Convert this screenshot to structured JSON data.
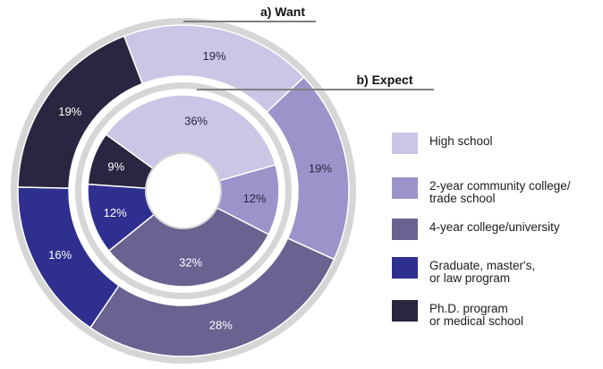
{
  "chart_data": {
    "type": "pie",
    "rings": [
      {
        "name": "a) Want",
        "slices": [
          {
            "category": "High school",
            "value": 19,
            "label": "19%"
          },
          {
            "category": "2-year community college/ trade school",
            "value": 19,
            "label": "19%"
          },
          {
            "category": "4-year college/university",
            "value": 28,
            "label": "28%"
          },
          {
            "category": "Graduate, master's, or law program",
            "value": 16,
            "label": "16%"
          },
          {
            "category": "Ph.D. program or medical school",
            "value": 19,
            "label": "19%"
          }
        ]
      },
      {
        "name": "b) Expect",
        "slices": [
          {
            "category": "High school",
            "value": 36,
            "label": "36%"
          },
          {
            "category": "2-year community college/ trade school",
            "value": 12,
            "label": "12%"
          },
          {
            "category": "4-year college/university",
            "value": 32,
            "label": "32%"
          },
          {
            "category": "Graduate, master's, or law program",
            "value": 12,
            "label": "12%"
          },
          {
            "category": "Ph.D. program or medical school",
            "value": 9,
            "label": "9%"
          }
        ]
      }
    ],
    "legend": {
      "placement": "right",
      "items": [
        {
          "line1": "High school",
          "line2": "",
          "color": "#c9c6e6"
        },
        {
          "line1": "2-year community college/",
          "line2": "trade school",
          "color": "#9a94cb"
        },
        {
          "line1": "4-year college/university",
          "line2": "",
          "color": "#6a6290"
        },
        {
          "line1": "Graduate, master's,",
          "line2": "or law program",
          "color": "#2e2f8f"
        },
        {
          "line1": "Ph.D. program",
          "line2": "or medical school",
          "color": "#2a2540"
        }
      ]
    },
    "label_colors": [
      "#2a2540",
      "#2a2540",
      "#ffffff",
      "#ffffff",
      "#ffffff"
    ],
    "separator_color": "#d6d6d6"
  }
}
